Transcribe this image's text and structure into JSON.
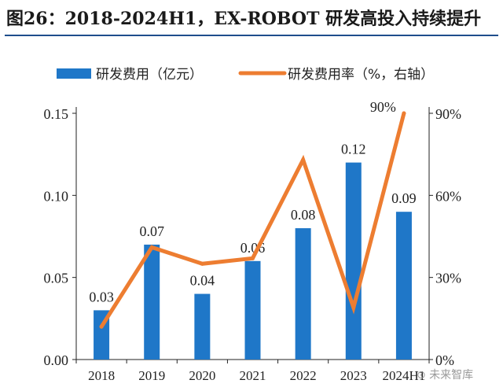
{
  "title": "图26：2018-2024H1，EX-ROBOT 研发高投入持续提升",
  "watermark": "⊙ 未来智库",
  "colors": {
    "bar": "#1f77c8",
    "line": "#ed7d31",
    "axis": "#222222"
  },
  "chart_data": {
    "type": "bar+line",
    "categories": [
      "2018",
      "2019",
      "2020",
      "2021",
      "2022",
      "2023",
      "2024H1"
    ],
    "series": [
      {
        "name": "研发费用（亿元）",
        "type": "bar",
        "axis": "left",
        "values": [
          0.03,
          0.07,
          0.04,
          0.06,
          0.08,
          0.12,
          0.09
        ],
        "labels": [
          "0.03",
          "0.07",
          "0.04",
          "0.06",
          "0.08",
          "0.12",
          "0.09"
        ]
      },
      {
        "name": "研发费用率（%，右轴）",
        "type": "line",
        "axis": "right",
        "values": [
          12,
          41,
          35,
          37,
          73,
          19,
          90
        ],
        "labels": [
          "",
          "",
          "",
          "",
          "",
          "",
          "90%"
        ]
      }
    ],
    "y_left": {
      "min": 0,
      "max": 0.15,
      "ticks": [
        "0.00",
        "0.05",
        "0.10",
        "0.15"
      ],
      "tick_values": [
        0,
        0.05,
        0.1,
        0.15
      ]
    },
    "y_right": {
      "min": 0,
      "max": 90,
      "ticks": [
        "0%",
        "30%",
        "60%",
        "90%"
      ],
      "tick_values": [
        0,
        30,
        60,
        90
      ]
    },
    "grid": false,
    "legend": "top"
  }
}
